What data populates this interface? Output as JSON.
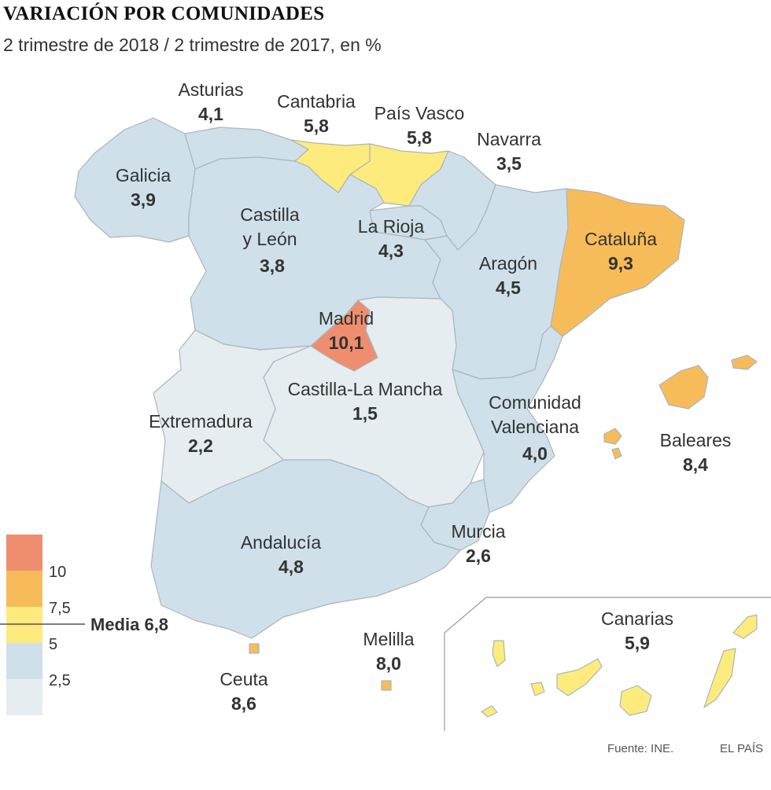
{
  "title": "VARIACIÓN POR COMUNIDADES",
  "subtitle": "2 trimestre de 2018 / 2 trimestre de 2017, en %",
  "colors": {
    "lt0": "#e6edf0",
    "b2_5_5": "#cfe0ea",
    "b5_7_5": "#fdeb7d",
    "b7_5_10": "#f7bc5a",
    "gt10": "#ef8e6e",
    "border": "#a9b6bc"
  },
  "legend": {
    "ticks": [
      "10",
      "7,5",
      "5",
      "2,5"
    ],
    "media_label": "Media 6,8",
    "media_value": 6.8
  },
  "regions": {
    "asturias": {
      "name": "Asturias",
      "value": "4,1"
    },
    "cantabria": {
      "name": "Cantabria",
      "value": "5,8"
    },
    "pais_vasco": {
      "name": "País Vasco",
      "value": "5,8"
    },
    "navarra": {
      "name": "Navarra",
      "value": "3,5"
    },
    "galicia": {
      "name": "Galicia",
      "value": "3,9"
    },
    "castilla_leon": {
      "name1": "Castilla",
      "name2": "y León",
      "value": "3,8"
    },
    "la_rioja": {
      "name": "La Rioja",
      "value": "4,3"
    },
    "cataluna": {
      "name": "Cataluña",
      "value": "9,3"
    },
    "aragon": {
      "name": "Aragón",
      "value": "4,5"
    },
    "madrid": {
      "name": "Madrid",
      "value": "10,1"
    },
    "castilla_la_mancha": {
      "name": "Castilla-La Mancha",
      "value": "1,5"
    },
    "extremadura": {
      "name": "Extremadura",
      "value": "2,2"
    },
    "comunidad_valenciana": {
      "name1": "Comunidad",
      "name2": "Valenciana",
      "value": "4,0"
    },
    "baleares": {
      "name": "Baleares",
      "value": "8,4"
    },
    "andalucia": {
      "name": "Andalucía",
      "value": "4,8"
    },
    "murcia": {
      "name": "Murcia",
      "value": "2,6"
    },
    "ceuta": {
      "name": "Ceuta",
      "value": "8,6"
    },
    "melilla": {
      "name": "Melilla",
      "value": "8,0"
    },
    "canarias": {
      "name": "Canarias",
      "value": "5,9"
    }
  },
  "footer": {
    "source": "Fuente: INE.",
    "brand": "EL PAÍS"
  }
}
